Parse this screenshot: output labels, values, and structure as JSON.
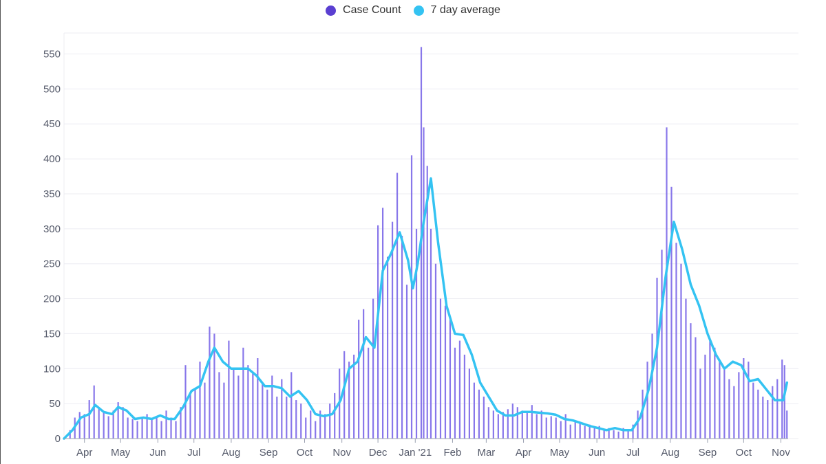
{
  "legend": {
    "items": [
      {
        "label": "Case Count",
        "color": "#5a3fd1"
      },
      {
        "label": "7 day average",
        "color": "#34c3f2"
      }
    ]
  },
  "chart_data": {
    "type": "bar",
    "title": "",
    "xlabel": "",
    "ylabel": "",
    "ylim": [
      0,
      580
    ],
    "y_ticks": [
      0,
      50,
      100,
      150,
      200,
      250,
      300,
      350,
      400,
      450,
      500,
      550
    ],
    "x_tick_labels": [
      "Apr",
      "May",
      "Jun",
      "Jul",
      "Aug",
      "Sep",
      "Oct",
      "Nov",
      "Dec",
      "Jan '21",
      "Feb",
      "Mar",
      "Apr",
      "May",
      "Jun",
      "Jul",
      "Aug",
      "Sep",
      "Oct",
      "Nov"
    ],
    "x_range": [
      "2020-03-15",
      "2021-11-07"
    ],
    "grid": true,
    "legend_position": "top-center",
    "series": [
      {
        "name": "Case Count",
        "type": "bar",
        "color": "#7b68e8",
        "points": [
          [
            "2020-03-16",
            2
          ],
          [
            "2020-03-20",
            12
          ],
          [
            "2020-03-24",
            30
          ],
          [
            "2020-03-28",
            38
          ],
          [
            "2020-04-01",
            35
          ],
          [
            "2020-04-05",
            55
          ],
          [
            "2020-04-09",
            76
          ],
          [
            "2020-04-13",
            45
          ],
          [
            "2020-04-17",
            38
          ],
          [
            "2020-04-21",
            32
          ],
          [
            "2020-04-25",
            40
          ],
          [
            "2020-04-29",
            52
          ],
          [
            "2020-05-03",
            45
          ],
          [
            "2020-05-07",
            30
          ],
          [
            "2020-05-11",
            28
          ],
          [
            "2020-05-15",
            25
          ],
          [
            "2020-05-19",
            30
          ],
          [
            "2020-05-23",
            35
          ],
          [
            "2020-05-27",
            28
          ],
          [
            "2020-05-31",
            30
          ],
          [
            "2020-06-04",
            25
          ],
          [
            "2020-06-08",
            40
          ],
          [
            "2020-06-12",
            30
          ],
          [
            "2020-06-16",
            25
          ],
          [
            "2020-06-20",
            45
          ],
          [
            "2020-06-24",
            105
          ],
          [
            "2020-06-28",
            65
          ],
          [
            "2020-07-02",
            70
          ],
          [
            "2020-07-06",
            110
          ],
          [
            "2020-07-10",
            80
          ],
          [
            "2020-07-14",
            160
          ],
          [
            "2020-07-18",
            150
          ],
          [
            "2020-07-22",
            95
          ],
          [
            "2020-07-26",
            80
          ],
          [
            "2020-07-30",
            140
          ],
          [
            "2020-08-03",
            100
          ],
          [
            "2020-08-07",
            90
          ],
          [
            "2020-08-11",
            130
          ],
          [
            "2020-08-15",
            105
          ],
          [
            "2020-08-19",
            95
          ],
          [
            "2020-08-23",
            115
          ],
          [
            "2020-08-27",
            80
          ],
          [
            "2020-08-31",
            70
          ],
          [
            "2020-09-04",
            90
          ],
          [
            "2020-09-08",
            60
          ],
          [
            "2020-09-12",
            85
          ],
          [
            "2020-09-16",
            60
          ],
          [
            "2020-09-20",
            95
          ],
          [
            "2020-09-24",
            55
          ],
          [
            "2020-09-28",
            50
          ],
          [
            "2020-10-02",
            30
          ],
          [
            "2020-10-06",
            40
          ],
          [
            "2020-10-10",
            25
          ],
          [
            "2020-10-14",
            40
          ],
          [
            "2020-10-18",
            35
          ],
          [
            "2020-10-22",
            50
          ],
          [
            "2020-10-26",
            65
          ],
          [
            "2020-10-30",
            100
          ],
          [
            "2020-11-03",
            125
          ],
          [
            "2020-11-07",
            110
          ],
          [
            "2020-11-11",
            120
          ],
          [
            "2020-11-15",
            170
          ],
          [
            "2020-11-19",
            185
          ],
          [
            "2020-11-23",
            130
          ],
          [
            "2020-11-27",
            200
          ],
          [
            "2020-12-01",
            305
          ],
          [
            "2020-12-05",
            330
          ],
          [
            "2020-12-09",
            260
          ],
          [
            "2020-12-13",
            310
          ],
          [
            "2020-12-17",
            380
          ],
          [
            "2020-12-21",
            290
          ],
          [
            "2020-12-25",
            220
          ],
          [
            "2020-12-29",
            405
          ],
          [
            "2021-01-02",
            300
          ],
          [
            "2021-01-06",
            560
          ],
          [
            "2021-01-08",
            445
          ],
          [
            "2021-01-11",
            390
          ],
          [
            "2021-01-14",
            300
          ],
          [
            "2021-01-18",
            250
          ],
          [
            "2021-01-22",
            200
          ],
          [
            "2021-01-26",
            190
          ],
          [
            "2021-01-30",
            170
          ],
          [
            "2021-02-03",
            130
          ],
          [
            "2021-02-07",
            140
          ],
          [
            "2021-02-11",
            120
          ],
          [
            "2021-02-15",
            100
          ],
          [
            "2021-02-19",
            80
          ],
          [
            "2021-02-23",
            70
          ],
          [
            "2021-02-27",
            60
          ],
          [
            "2021-03-03",
            45
          ],
          [
            "2021-03-07",
            40
          ],
          [
            "2021-03-11",
            35
          ],
          [
            "2021-03-15",
            38
          ],
          [
            "2021-03-19",
            42
          ],
          [
            "2021-03-23",
            50
          ],
          [
            "2021-03-27",
            45
          ],
          [
            "2021-03-31",
            40
          ],
          [
            "2021-04-04",
            38
          ],
          [
            "2021-04-08",
            48
          ],
          [
            "2021-04-12",
            35
          ],
          [
            "2021-04-16",
            40
          ],
          [
            "2021-04-20",
            30
          ],
          [
            "2021-04-24",
            32
          ],
          [
            "2021-04-28",
            30
          ],
          [
            "2021-05-02",
            25
          ],
          [
            "2021-05-06",
            35
          ],
          [
            "2021-05-10",
            20
          ],
          [
            "2021-05-14",
            25
          ],
          [
            "2021-05-18",
            22
          ],
          [
            "2021-05-22",
            18
          ],
          [
            "2021-05-26",
            20
          ],
          [
            "2021-05-30",
            15
          ],
          [
            "2021-06-03",
            18
          ],
          [
            "2021-06-07",
            12
          ],
          [
            "2021-06-11",
            15
          ],
          [
            "2021-06-15",
            12
          ],
          [
            "2021-06-19",
            10
          ],
          [
            "2021-06-23",
            15
          ],
          [
            "2021-06-27",
            12
          ],
          [
            "2021-07-01",
            20
          ],
          [
            "2021-07-05",
            40
          ],
          [
            "2021-07-09",
            70
          ],
          [
            "2021-07-13",
            110
          ],
          [
            "2021-07-17",
            150
          ],
          [
            "2021-07-21",
            230
          ],
          [
            "2021-07-25",
            270
          ],
          [
            "2021-07-29",
            445
          ],
          [
            "2021-08-02",
            360
          ],
          [
            "2021-08-06",
            280
          ],
          [
            "2021-08-10",
            250
          ],
          [
            "2021-08-14",
            200
          ],
          [
            "2021-08-18",
            165
          ],
          [
            "2021-08-22",
            145
          ],
          [
            "2021-08-26",
            100
          ],
          [
            "2021-08-30",
            120
          ],
          [
            "2021-09-03",
            140
          ],
          [
            "2021-09-07",
            130
          ],
          [
            "2021-09-11",
            110
          ],
          [
            "2021-09-15",
            100
          ],
          [
            "2021-09-19",
            85
          ],
          [
            "2021-09-23",
            75
          ],
          [
            "2021-09-27",
            95
          ],
          [
            "2021-10-01",
            115
          ],
          [
            "2021-10-05",
            110
          ],
          [
            "2021-10-09",
            80
          ],
          [
            "2021-10-13",
            70
          ],
          [
            "2021-10-17",
            60
          ],
          [
            "2021-10-21",
            55
          ],
          [
            "2021-10-25",
            75
          ],
          [
            "2021-10-29",
            85
          ],
          [
            "2021-11-02",
            113
          ],
          [
            "2021-11-04",
            105
          ],
          [
            "2021-11-06",
            40
          ]
        ]
      },
      {
        "name": "7 day average",
        "type": "line",
        "color": "#34c3f2",
        "points": [
          [
            "2020-03-15",
            0
          ],
          [
            "2020-03-22",
            12
          ],
          [
            "2020-03-29",
            30
          ],
          [
            "2020-04-05",
            35
          ],
          [
            "2020-04-10",
            48
          ],
          [
            "2020-04-17",
            38
          ],
          [
            "2020-04-24",
            35
          ],
          [
            "2020-04-29",
            45
          ],
          [
            "2020-05-06",
            40
          ],
          [
            "2020-05-13",
            28
          ],
          [
            "2020-05-20",
            30
          ],
          [
            "2020-05-27",
            28
          ],
          [
            "2020-06-03",
            33
          ],
          [
            "2020-06-10",
            28
          ],
          [
            "2020-06-15",
            28
          ],
          [
            "2020-06-22",
            45
          ],
          [
            "2020-06-29",
            68
          ],
          [
            "2020-07-06",
            75
          ],
          [
            "2020-07-13",
            110
          ],
          [
            "2020-07-18",
            130
          ],
          [
            "2020-07-25",
            110
          ],
          [
            "2020-08-01",
            100
          ],
          [
            "2020-08-08",
            100
          ],
          [
            "2020-08-15",
            100
          ],
          [
            "2020-08-22",
            90
          ],
          [
            "2020-08-29",
            75
          ],
          [
            "2020-09-05",
            75
          ],
          [
            "2020-09-12",
            72
          ],
          [
            "2020-09-19",
            60
          ],
          [
            "2020-09-26",
            68
          ],
          [
            "2020-10-03",
            55
          ],
          [
            "2020-10-10",
            35
          ],
          [
            "2020-10-17",
            32
          ],
          [
            "2020-10-24",
            35
          ],
          [
            "2020-10-31",
            55
          ],
          [
            "2020-11-07",
            100
          ],
          [
            "2020-11-14",
            110
          ],
          [
            "2020-11-21",
            145
          ],
          [
            "2020-11-28",
            130
          ],
          [
            "2020-12-05",
            240
          ],
          [
            "2020-12-12",
            265
          ],
          [
            "2020-12-19",
            295
          ],
          [
            "2020-12-26",
            255
          ],
          [
            "2020-12-30",
            215
          ],
          [
            "2021-01-03",
            250
          ],
          [
            "2021-01-08",
            310
          ],
          [
            "2021-01-14",
            372
          ],
          [
            "2021-01-20",
            280
          ],
          [
            "2021-01-27",
            190
          ],
          [
            "2021-02-03",
            150
          ],
          [
            "2021-02-10",
            148
          ],
          [
            "2021-02-17",
            120
          ],
          [
            "2021-02-24",
            80
          ],
          [
            "2021-03-03",
            60
          ],
          [
            "2021-03-10",
            40
          ],
          [
            "2021-03-17",
            33
          ],
          [
            "2021-03-24",
            33
          ],
          [
            "2021-03-31",
            38
          ],
          [
            "2021-04-07",
            38
          ],
          [
            "2021-04-14",
            37
          ],
          [
            "2021-04-21",
            36
          ],
          [
            "2021-04-28",
            34
          ],
          [
            "2021-05-05",
            28
          ],
          [
            "2021-05-12",
            26
          ],
          [
            "2021-05-19",
            22
          ],
          [
            "2021-05-26",
            18
          ],
          [
            "2021-06-02",
            15
          ],
          [
            "2021-06-09",
            12
          ],
          [
            "2021-06-16",
            15
          ],
          [
            "2021-06-23",
            12
          ],
          [
            "2021-06-30",
            12
          ],
          [
            "2021-07-07",
            30
          ],
          [
            "2021-07-14",
            70
          ],
          [
            "2021-07-21",
            130
          ],
          [
            "2021-07-28",
            230
          ],
          [
            "2021-08-04",
            310
          ],
          [
            "2021-08-11",
            270
          ],
          [
            "2021-08-18",
            220
          ],
          [
            "2021-08-25",
            190
          ],
          [
            "2021-09-01",
            150
          ],
          [
            "2021-09-08",
            120
          ],
          [
            "2021-09-15",
            100
          ],
          [
            "2021-09-22",
            110
          ],
          [
            "2021-09-29",
            105
          ],
          [
            "2021-10-06",
            82
          ],
          [
            "2021-10-13",
            85
          ],
          [
            "2021-10-20",
            70
          ],
          [
            "2021-10-27",
            55
          ],
          [
            "2021-11-03",
            55
          ],
          [
            "2021-11-06",
            80
          ]
        ]
      }
    ]
  }
}
